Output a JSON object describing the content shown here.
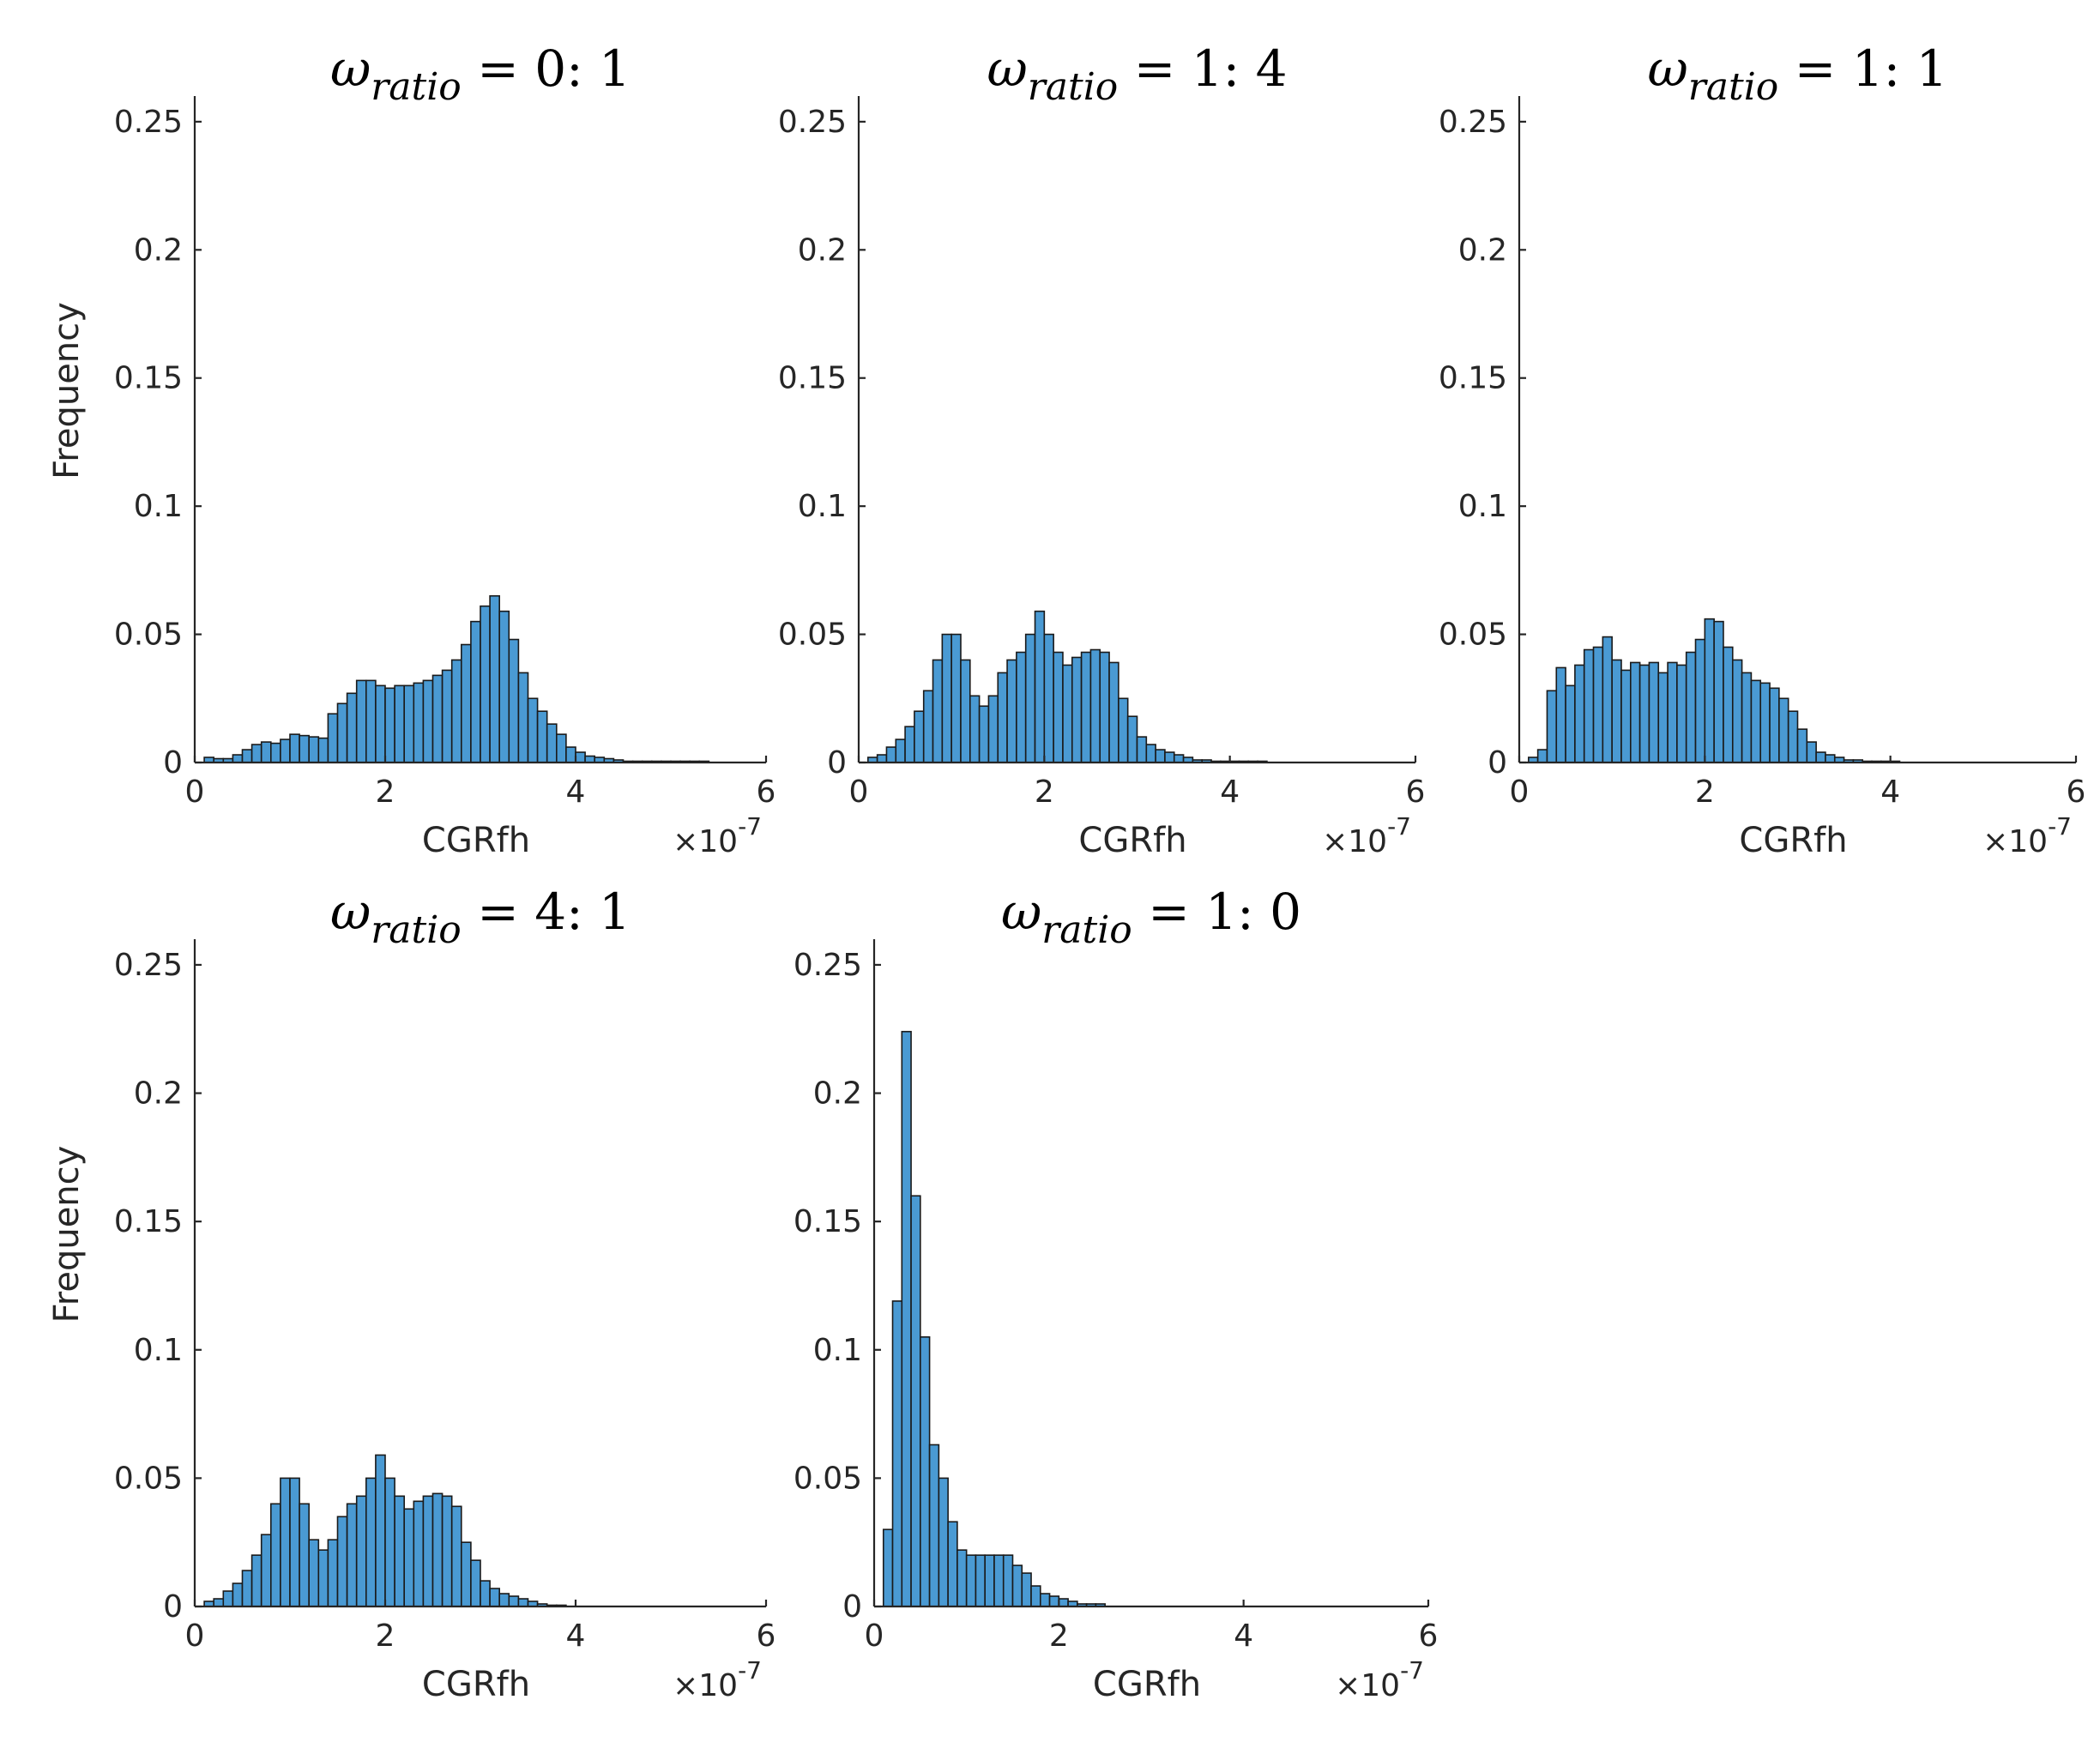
{
  "figure": {
    "bar_color": "#4a9ad3",
    "bar_edge_color": "#1a1a1a",
    "axis_color": "#262626"
  },
  "chart_data": [
    {
      "type": "bar",
      "title_symbol": "ω",
      "title_subscript": "ratio",
      "title_rest": " = 0: 1",
      "xlabel": "CGRfh",
      "ylabel": "Frequency",
      "x_exponent_label": "×10",
      "x_exponent": "-7",
      "xlim": [
        0,
        6
      ],
      "ylim": [
        0,
        0.26
      ],
      "xticks": [
        "0",
        "2",
        "4",
        "6"
      ],
      "yticks": [
        "0",
        "0.05",
        "0.1",
        "0.15",
        "0.2",
        "0.25"
      ],
      "bin_start": 0.1,
      "bin_width": 0.1,
      "values": [
        0.002,
        0.0015,
        0.0015,
        0.003,
        0.005,
        0.007,
        0.008,
        0.0075,
        0.009,
        0.011,
        0.0105,
        0.01,
        0.0095,
        0.019,
        0.023,
        0.027,
        0.032,
        0.032,
        0.03,
        0.029,
        0.03,
        0.03,
        0.031,
        0.032,
        0.034,
        0.036,
        0.04,
        0.046,
        0.055,
        0.061,
        0.065,
        0.059,
        0.048,
        0.035,
        0.025,
        0.02,
        0.015,
        0.011,
        0.006,
        0.004,
        0.0025,
        0.002,
        0.0015,
        0.001,
        0.0005,
        0.0005,
        0.0005,
        0.0005,
        0.0005,
        0.0005,
        0.0005,
        0.0005,
        0.0005
      ]
    },
    {
      "type": "bar",
      "title_symbol": "ω",
      "title_subscript": "ratio",
      "title_rest": " = 1: 4",
      "xlabel": "CGRfh",
      "ylabel": "",
      "x_exponent_label": "×10",
      "x_exponent": "-7",
      "xlim": [
        0,
        6
      ],
      "ylim": [
        0,
        0.26
      ],
      "xticks": [
        "0",
        "2",
        "4",
        "6"
      ],
      "yticks": [
        "0",
        "0.05",
        "0.1",
        "0.15",
        "0.2",
        "0.25"
      ],
      "bin_start": 0.1,
      "bin_width": 0.1,
      "values": [
        0.002,
        0.003,
        0.006,
        0.009,
        0.014,
        0.02,
        0.028,
        0.04,
        0.05,
        0.05,
        0.04,
        0.026,
        0.022,
        0.026,
        0.035,
        0.04,
        0.043,
        0.05,
        0.059,
        0.05,
        0.043,
        0.038,
        0.041,
        0.043,
        0.044,
        0.043,
        0.039,
        0.025,
        0.018,
        0.01,
        0.007,
        0.005,
        0.004,
        0.003,
        0.002,
        0.001,
        0.001,
        0.0005,
        0.0005,
        0.0005,
        0.0005,
        0.0005,
        0.0005
      ]
    },
    {
      "type": "bar",
      "title_symbol": "ω",
      "title_subscript": "ratio",
      "title_rest": " = 1: 1",
      "xlabel": "CGRfh",
      "ylabel": "",
      "x_exponent_label": "×10",
      "x_exponent": "-7",
      "xlim": [
        0,
        6
      ],
      "ylim": [
        0,
        0.26
      ],
      "xticks": [
        "0",
        "2",
        "4",
        "6"
      ],
      "yticks": [
        "0",
        "0.05",
        "0.1",
        "0.15",
        "0.2",
        "0.25"
      ],
      "bin_start": 0.1,
      "bin_width": 0.1,
      "values": [
        0.002,
        0.005,
        0.028,
        0.037,
        0.03,
        0.038,
        0.044,
        0.045,
        0.049,
        0.04,
        0.036,
        0.039,
        0.038,
        0.039,
        0.035,
        0.039,
        0.038,
        0.043,
        0.048,
        0.056,
        0.055,
        0.045,
        0.04,
        0.035,
        0.032,
        0.031,
        0.029,
        0.025,
        0.02,
        0.013,
        0.008,
        0.004,
        0.003,
        0.002,
        0.001,
        0.001,
        0.0005,
        0.0005,
        0.0005,
        0.0005
      ]
    },
    {
      "type": "bar",
      "title_symbol": "ω",
      "title_subscript": "ratio",
      "title_rest": " = 4: 1",
      "xlabel": "CGRfh",
      "ylabel": "Frequency",
      "x_exponent_label": "×10",
      "x_exponent": "-7",
      "xlim": [
        0,
        6
      ],
      "ylim": [
        0,
        0.26
      ],
      "xticks": [
        "0",
        "2",
        "4",
        "6"
      ],
      "yticks": [
        "0",
        "0.05",
        "0.1",
        "0.15",
        "0.2",
        "0.25"
      ],
      "bin_start": 0.1,
      "bin_width": 0.1,
      "values": [
        0.002,
        0.003,
        0.006,
        0.009,
        0.014,
        0.02,
        0.028,
        0.04,
        0.05,
        0.05,
        0.04,
        0.026,
        0.022,
        0.026,
        0.035,
        0.04,
        0.043,
        0.05,
        0.059,
        0.05,
        0.043,
        0.038,
        0.041,
        0.043,
        0.044,
        0.043,
        0.039,
        0.025,
        0.018,
        0.01,
        0.007,
        0.005,
        0.004,
        0.003,
        0.002,
        0.001,
        0.0005,
        0.0005
      ]
    },
    {
      "type": "bar",
      "title_symbol": "ω",
      "title_subscript": "ratio",
      "title_rest": " = 1: 0",
      "xlabel": "CGRfh",
      "ylabel": "",
      "x_exponent_label": "×10",
      "x_exponent": "-7",
      "xlim": [
        0,
        6
      ],
      "ylim": [
        0,
        0.26
      ],
      "xticks": [
        "0",
        "2",
        "4",
        "6"
      ],
      "yticks": [
        "0",
        "0.05",
        "0.1",
        "0.15",
        "0.2",
        "0.25"
      ],
      "bin_start": 0.1,
      "bin_width": 0.1,
      "values": [
        0.03,
        0.119,
        0.224,
        0.16,
        0.105,
        0.063,
        0.05,
        0.033,
        0.022,
        0.02,
        0.02,
        0.02,
        0.02,
        0.02,
        0.016,
        0.013,
        0.008,
        0.005,
        0.004,
        0.003,
        0.002,
        0.001,
        0.001,
        0.001
      ]
    }
  ]
}
